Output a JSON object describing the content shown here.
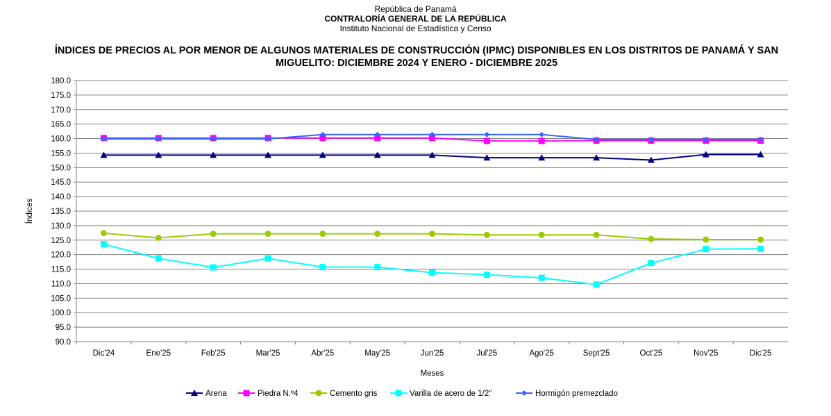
{
  "header": {
    "line1": "República de Panamá",
    "line2": "CONTRALORÍA GENERAL DE LA REPÚBLICA",
    "line3": "Instituto Nacional de Estadística y Censo"
  },
  "chart_data": {
    "type": "line",
    "title": "ÍNDICES DE PRECIOS AL POR MENOR DE ALGUNOS MATERIALES DE CONSTRUCCIÓN (IPMC) DISPONIBLES EN LOS DISTRITOS DE PANAMÁ Y SAN MIGUELITO: DICIEMBRE 2024 Y ENERO - DICIEMBRE 2025",
    "xlabel": "Meses",
    "ylabel": "Índices",
    "ylim": [
      90,
      180
    ],
    "ystep": 5,
    "grid": true,
    "legend": "bottom",
    "categories": [
      "Dic'24",
      "Ene'25",
      "Feb'25",
      "Mar'25",
      "Abr'25",
      "May'25",
      "Jun'25",
      "Jul'25",
      "Ago'25",
      "Sept'25",
      "Oct'25",
      "Nov'25",
      "Dic'25"
    ],
    "series": [
      {
        "name": "Arena",
        "color": "#000080",
        "marker": "triangle",
        "values": [
          154.3,
          154.3,
          154.3,
          154.3,
          154.3,
          154.3,
          154.3,
          153.4,
          153.4,
          153.4,
          152.6,
          154.5,
          154.5
        ]
      },
      {
        "name": "Piedra N.º4",
        "color": "#ff00ff",
        "marker": "square",
        "values": [
          160.2,
          160.2,
          160.2,
          160.2,
          160.2,
          160.2,
          160.2,
          159.2,
          159.2,
          159.3,
          159.3,
          159.3,
          159.3
        ]
      },
      {
        "name": "Cemento gris",
        "color": "#99cc00",
        "marker": "circle",
        "values": [
          127.4,
          125.8,
          127.2,
          127.2,
          127.2,
          127.2,
          127.2,
          126.8,
          126.8,
          126.8,
          125.4,
          125.2,
          125.2
        ]
      },
      {
        "name": "Varilla de acero de 1/2\"",
        "color": "#00ffff",
        "marker": "square",
        "values": [
          123.6,
          118.7,
          115.6,
          118.7,
          115.7,
          115.7,
          113.8,
          113.1,
          112.0,
          109.7,
          117.1,
          121.9,
          122.0
        ]
      },
      {
        "name": "Hormigón premezclado",
        "color": "#3366ff",
        "marker": "diamond",
        "values": [
          159.9,
          159.9,
          159.9,
          159.9,
          161.4,
          161.4,
          161.4,
          161.4,
          161.4,
          159.7,
          159.7,
          159.7,
          159.7
        ]
      }
    ]
  }
}
